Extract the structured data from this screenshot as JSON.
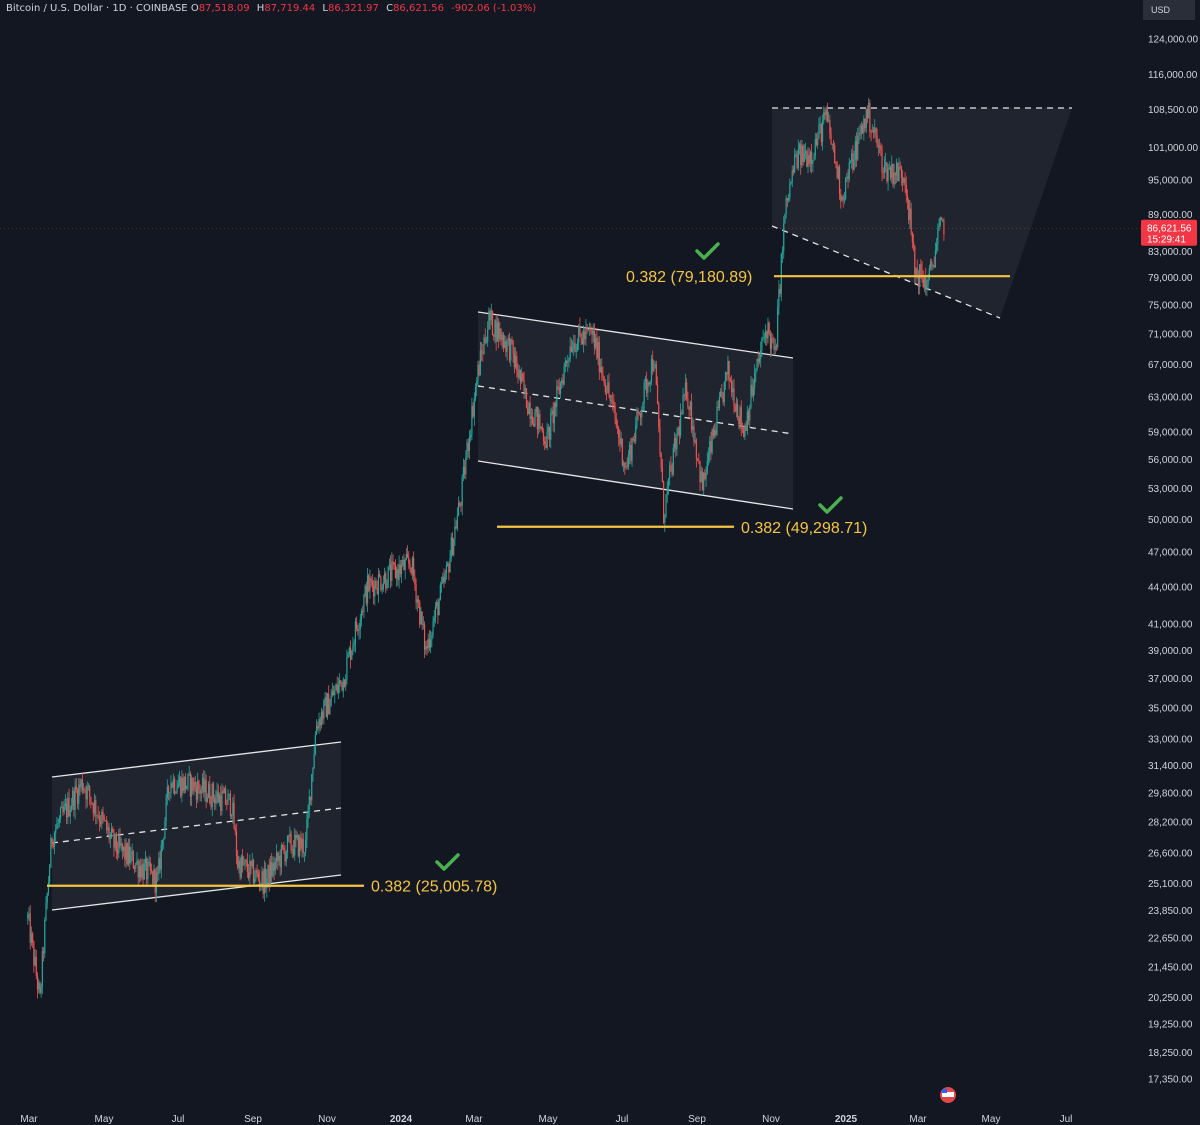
{
  "header": {
    "symbol": "Bitcoin / U.S. Dollar · 1D · COINBASE",
    "o_label": "O",
    "o_value": "87,518.09",
    "h_label": "H",
    "h_value": "87,719.44",
    "l_label": "L",
    "l_value": "86,321.97",
    "c_label": "C",
    "c_value": "86,621.56",
    "change": "-902.06 (-1.03%)"
  },
  "currency": "USD",
  "colors": {
    "background": "#131722",
    "up": "#26a69a",
    "down": "#ef5350",
    "fib": "#f5c542",
    "check": "#4caf50",
    "price_tag": "#f23645"
  },
  "chart_data": {
    "type": "candlestick",
    "symbol": "BTCUSD",
    "interval": "1D",
    "yscale": "log",
    "ylim": [
      16700,
      128000
    ],
    "x_ticks": [
      "Mar",
      "May",
      "Jul",
      "Sep",
      "Nov",
      "2024",
      "Mar",
      "May",
      "Jul",
      "Sep",
      "Nov",
      "2025",
      "Mar",
      "May",
      "Jul"
    ],
    "y_ticks": [
      "124,000.00",
      "116,000.00",
      "108,500.00",
      "101,000.00",
      "95,000.00",
      "89,000.00",
      "83,000.00",
      "79,000.00",
      "75,000.00",
      "71,000.00",
      "67,000.00",
      "63,000.00",
      "59,000.00",
      "56,000.00",
      "53,000.00",
      "50,000.00",
      "47,000.00",
      "44,000.00",
      "41,000.00",
      "39,000.00",
      "37,000.00",
      "35,000.00",
      "33,000.00",
      "31,400.00",
      "29,800.00",
      "28,200.00",
      "26,600.00",
      "25,100.00",
      "23,850.00",
      "22,650.00",
      "21,450.00",
      "20,250.00",
      "19,250.00",
      "18,250.00",
      "17,350.00"
    ],
    "last_price": "86,621.56",
    "countdown": "15:29:41",
    "price_path": [
      [
        "2023-02-28",
        23500
      ],
      [
        "2023-03-10",
        20100
      ],
      [
        "2023-03-20",
        27500
      ],
      [
        "2023-04-14",
        30400
      ],
      [
        "2023-05-10",
        27000
      ],
      [
        "2023-06-15",
        25200
      ],
      [
        "2023-06-25",
        30500
      ],
      [
        "2023-07-15",
        30200
      ],
      [
        "2023-08-15",
        29200
      ],
      [
        "2023-08-20",
        26100
      ],
      [
        "2023-09-11",
        25200
      ],
      [
        "2023-10-01",
        27000
      ],
      [
        "2023-10-15",
        27000
      ],
      [
        "2023-10-24",
        34000
      ],
      [
        "2023-11-15",
        37000
      ],
      [
        "2023-12-05",
        44000
      ],
      [
        "2024-01-10",
        46000
      ],
      [
        "2024-01-22",
        39000
      ],
      [
        "2024-02-08",
        45000
      ],
      [
        "2024-02-20",
        52000
      ],
      [
        "2024-03-05",
        66000
      ],
      [
        "2024-03-14",
        73000
      ],
      [
        "2024-04-01",
        69000
      ],
      [
        "2024-04-13",
        63000
      ],
      [
        "2024-05-01",
        58000
      ],
      [
        "2024-05-21",
        70000
      ],
      [
        "2024-06-07",
        71000
      ],
      [
        "2024-06-25",
        61000
      ],
      [
        "2024-07-05",
        55000
      ],
      [
        "2024-07-28",
        68000
      ],
      [
        "2024-08-05",
        50500
      ],
      [
        "2024-08-24",
        64000
      ],
      [
        "2024-09-06",
        53000
      ],
      [
        "2024-09-27",
        66000
      ],
      [
        "2024-10-10",
        59000
      ],
      [
        "2024-10-29",
        72000
      ],
      [
        "2024-11-05",
        68000
      ],
      [
        "2024-11-13",
        89000
      ],
      [
        "2024-11-22",
        99000
      ],
      [
        "2024-12-05",
        100000
      ],
      [
        "2024-12-17",
        107000
      ],
      [
        "2024-12-30",
        92000
      ],
      [
        "2025-01-20",
        108000
      ],
      [
        "2025-02-03",
        97000
      ],
      [
        "2025-02-20",
        96000
      ],
      [
        "2025-02-28",
        80000
      ],
      [
        "2025-03-11",
        78000
      ],
      [
        "2025-03-20",
        86000
      ],
      [
        "2025-03-24",
        87500
      ]
    ],
    "annotations": [
      {
        "type": "fib_level",
        "label": "0.382 (25,005.78)",
        "value": 25005.78
      },
      {
        "type": "fib_level",
        "label": "0.382 (49,298.71)",
        "value": 49298.71
      },
      {
        "type": "fib_level",
        "label": "0.382 (79,180.89)",
        "value": 79180.89
      }
    ]
  }
}
